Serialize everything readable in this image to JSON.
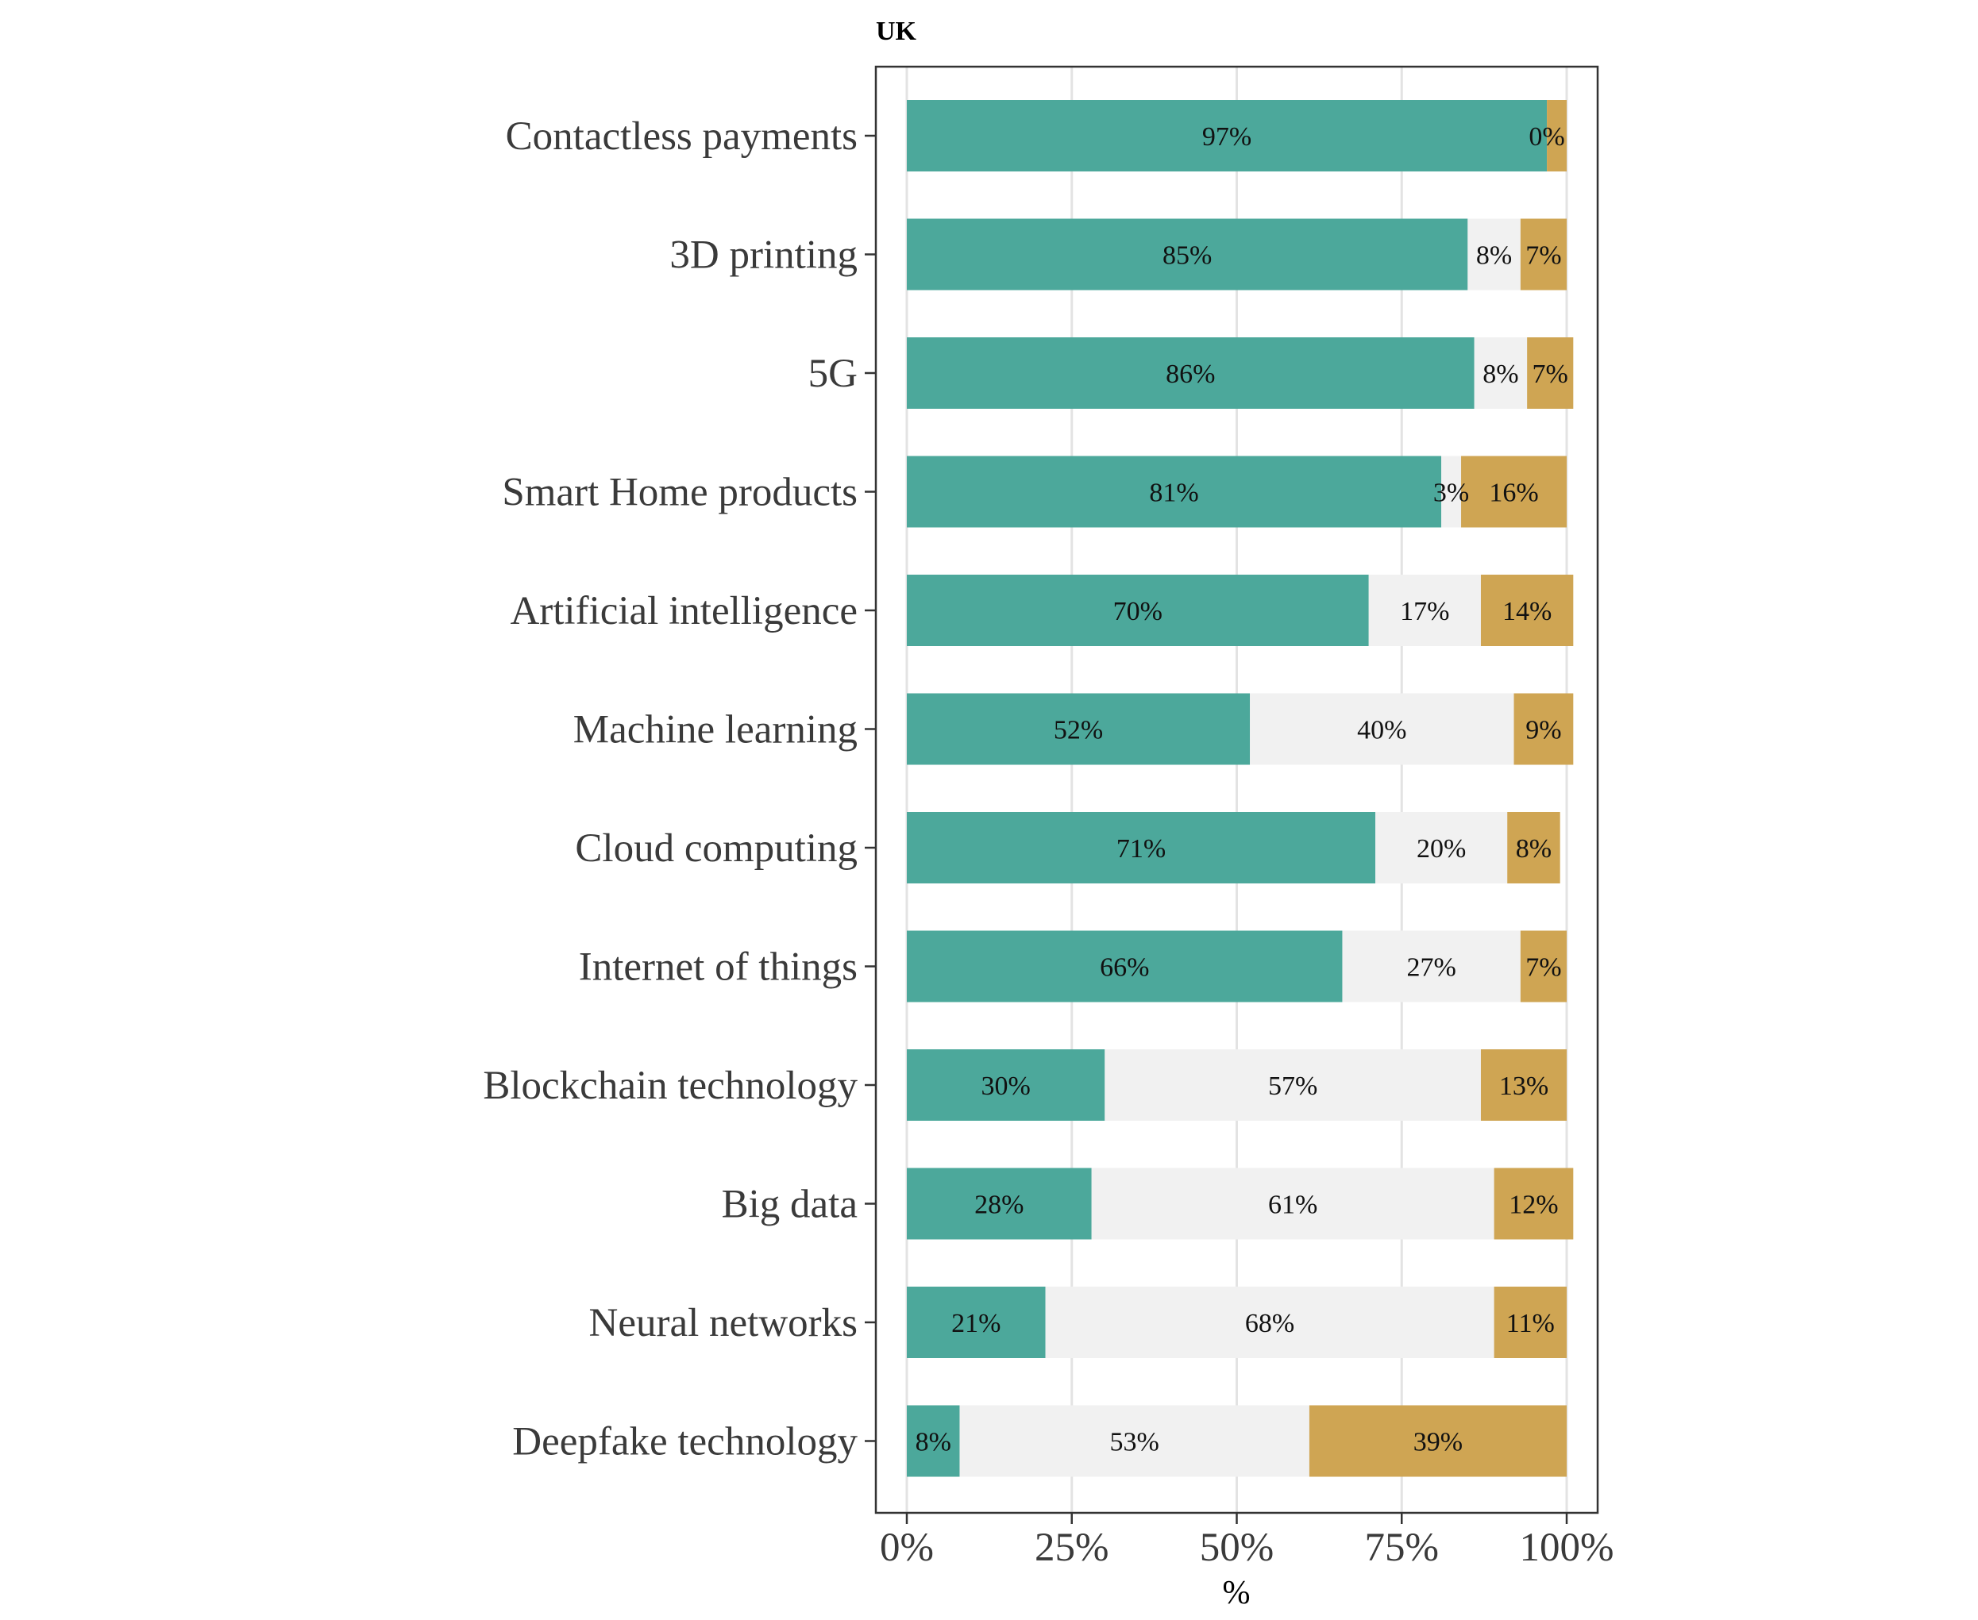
{
  "chart_data": {
    "type": "bar",
    "orientation": "horizontal",
    "stacked": true,
    "title": "UK",
    "xlabel": "%",
    "ylabel": "",
    "xlim": [
      0,
      100
    ],
    "x_ticks": [
      "0%",
      "25%",
      "50%",
      "75%",
      "100%"
    ],
    "grid": true,
    "categories": [
      "Contactless payments",
      "3D printing",
      "5G",
      "Smart Home products",
      "Artificial intelligence",
      "Machine learning",
      "Cloud computing",
      "Internet of things",
      "Blockchain technology",
      "Big data",
      "Neural networks",
      "Deepfake technology"
    ],
    "series": [
      {
        "color": "#4ca89b",
        "values": [
          97,
          85,
          86,
          81,
          70,
          52,
          71,
          66,
          30,
          28,
          21,
          8
        ],
        "labels": [
          "97%",
          "85%",
          "86%",
          "81%",
          "70%",
          "52%",
          "71%",
          "66%",
          "30%",
          "28%",
          "21%",
          "8%"
        ]
      },
      {
        "color": "#f1f1f1",
        "values": [
          0,
          8,
          8,
          3,
          17,
          40,
          20,
          27,
          57,
          61,
          68,
          53
        ],
        "labels": [
          "0%",
          "8%",
          "8%",
          "3%",
          "17%",
          "40%",
          "20%",
          "27%",
          "57%",
          "61%",
          "68%",
          "53%"
        ]
      },
      {
        "color": "#cfa553",
        "values": [
          3,
          7,
          7,
          16,
          14,
          9,
          8,
          7,
          13,
          12,
          11,
          39
        ],
        "labels": [
          "",
          "7%",
          "7%",
          "16%",
          "14%",
          "9%",
          "8%",
          "7%",
          "13%",
          "12%",
          "11%",
          "39%"
        ]
      }
    ]
  }
}
